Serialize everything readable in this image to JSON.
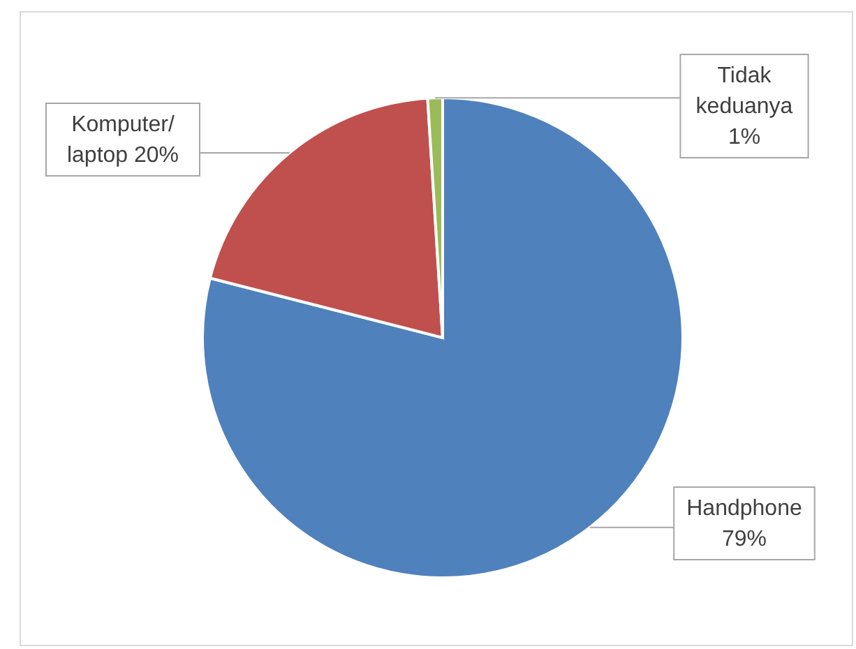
{
  "chart_data": {
    "type": "pie",
    "categories": [
      "Handphone",
      "Komputer/ laptop",
      "Tidak keduanya"
    ],
    "values": [
      79,
      20,
      1
    ],
    "colors": [
      "#4f81bd",
      "#c0504d",
      "#9bbb59"
    ],
    "value_labels": [
      "79%",
      "20%",
      "1%"
    ]
  }
}
